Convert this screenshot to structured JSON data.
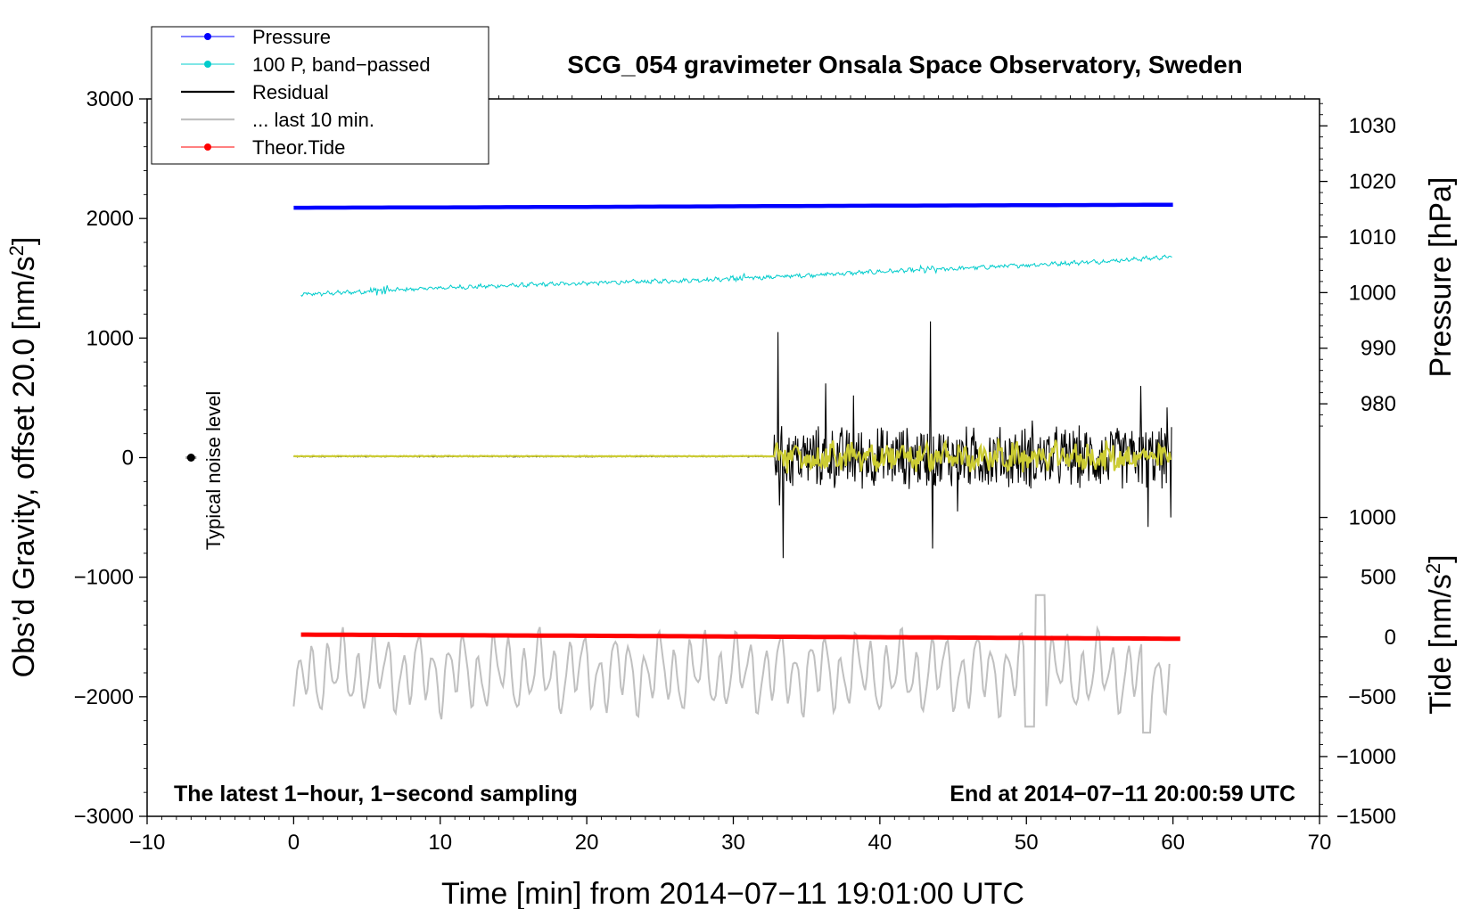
{
  "chart_data": {
    "type": "line",
    "title": "SCG_054 gravimeter Onsala Space Observatory, Sweden",
    "xlabel": "Time [min] from 2014−07−11 19:01:00 UTC",
    "ylabel": "Obs’d Gravity, offset 20.0 [nm/s²]",
    "ylabel_parts": [
      "Obs’d Gravity, offset 20.0 [nm/s",
      "2",
      "]"
    ],
    "y2label": "Pressure [hPa]",
    "y3label_parts": [
      "Tide [nm/s",
      "2",
      "]"
    ],
    "xlim": [
      -10,
      70
    ],
    "ylim": [
      -3000,
      3000
    ],
    "x_ticks": [
      "−10",
      "0",
      "10",
      "20",
      "30",
      "40",
      "50",
      "60",
      "70"
    ],
    "x_tick_values": [
      -10,
      0,
      10,
      20,
      30,
      40,
      50,
      60,
      70
    ],
    "y_ticks": [
      "−3000",
      "−2000",
      "−1000",
      "0",
      "1000",
      "2000",
      "3000"
    ],
    "y_tick_values": [
      -3000,
      -2000,
      -1000,
      0,
      1000,
      2000,
      3000
    ],
    "pressure_axis": {
      "ticks": [
        "980",
        "990",
        "1000",
        "1010",
        "1020",
        "1030"
      ],
      "values": [
        980,
        990,
        1000,
        1010,
        1020,
        1030
      ],
      "gravity_at_1000": 1380,
      "gravity_per_hpa": 46.5
    },
    "tide_axis": {
      "ticks": [
        "−1500",
        "−1000",
        "−500",
        "0",
        "500",
        "1000"
      ],
      "values": [
        -1500,
        -1000,
        -500,
        0,
        500,
        1000
      ],
      "gravity_at_0": -1500,
      "gravity_ratio": 1.0
    },
    "legend": [
      {
        "label": "Pressure",
        "color": "#0000ff",
        "marker": true
      },
      {
        "label": "100 P, band−passed",
        "color": "#00cccc",
        "marker": true
      },
      {
        "label": "Residual",
        "color": "#000000",
        "marker": false
      },
      {
        "label": "... last 10 min.",
        "color": "#c0c0c0",
        "marker": false
      },
      {
        "label": "Theor.Tide",
        "color": "#ff0000",
        "marker": true
      }
    ],
    "annotations": {
      "bottom_left": "The latest 1−hour, 1−second sampling",
      "bottom_right": "End at 2014−07−11 20:00:59 UTC",
      "noise": "Typical noise level"
    },
    "noise_marker": {
      "x": -7,
      "y": 0
    },
    "series": [
      {
        "name": "Pressure",
        "color": "#0000ff",
        "x": [
          0,
          10,
          20,
          30,
          40,
          50,
          60
        ],
        "values": [
          2090,
          2093,
          2097,
          2102,
          2107,
          2111,
          2115
        ]
      },
      {
        "name": "100 P, band−passed",
        "color": "#00cccc",
        "x": [
          0,
          5,
          10,
          15,
          20,
          25,
          30,
          35,
          40,
          45,
          50,
          55,
          60
        ],
        "values": [
          1360,
          1390,
          1420,
          1440,
          1460,
          1475,
          1495,
          1525,
          1555,
          1580,
          1610,
          1640,
          1680
        ]
      },
      {
        "name": "Residual",
        "color": "#000000",
        "x": [
          0,
          10,
          20,
          30,
          32.7,
          33.1,
          35,
          40,
          43.5,
          45,
          50,
          55,
          59.5,
          60
        ],
        "values": [
          10,
          10,
          12,
          10,
          15,
          1050,
          -120,
          100,
          1140,
          -150,
          300,
          -200,
          420,
          -450
        ]
      },
      {
        "name": "... last 10 min.",
        "color": "#c0c0c0",
        "x": [
          0,
          5,
          10,
          15,
          20,
          25,
          30,
          35,
          40,
          45,
          50,
          51,
          55,
          60
        ],
        "values": [
          -2080,
          -1800,
          -1850,
          -1750,
          -1900,
          -1800,
          -1850,
          -1700,
          -1850,
          -1900,
          -2250,
          -1150,
          -1950,
          -1850
        ]
      },
      {
        "name": "Theor.Tide",
        "color": "#ff0000",
        "x": [
          0,
          10,
          20,
          30,
          40,
          50,
          60.5
        ],
        "values": [
          -1480,
          -1485,
          -1490,
          -1496,
          -1502,
          -1508,
          -1515
        ]
      }
    ]
  }
}
